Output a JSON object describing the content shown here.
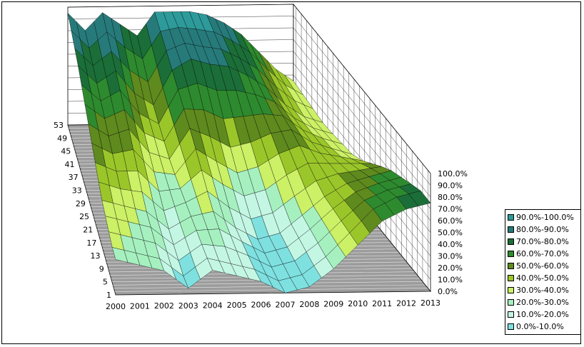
{
  "chart_data": {
    "type": "surface-3d",
    "title": "",
    "categories": [
      "2000",
      "2001",
      "2002",
      "2003",
      "2004",
      "2005",
      "2006",
      "2007",
      "2008",
      "2009",
      "2010",
      "2011",
      "2012",
      "2013"
    ],
    "depth_labels": [
      "1",
      "5",
      "9",
      "13",
      "17",
      "21",
      "25",
      "29",
      "33",
      "37",
      "41",
      "45",
      "49",
      "53"
    ],
    "z_axis": {
      "ticks": [
        "0.0%",
        "10.0%",
        "20.0%",
        "30.0%",
        "40.0%",
        "50.0%",
        "60.0%",
        "70.0%",
        "80.0%",
        "90.0%",
        "100.0%"
      ],
      "range": [
        0,
        1
      ]
    },
    "legend_position": "right",
    "legend": [
      {
        "label": "90.0%-100.0%",
        "color": "#2e9a9a"
      },
      {
        "label": "80.0%-90.0%",
        "color": "#277a7a"
      },
      {
        "label": "70.0%-80.0%",
        "color": "#1b6e38"
      },
      {
        "label": "60.0%-70.0%",
        "color": "#2e8a2e"
      },
      {
        "label": "50.0%-60.0%",
        "color": "#5f8a1e"
      },
      {
        "label": "40.0%-50.0%",
        "color": "#9bc62a"
      },
      {
        "label": "30.0%-40.0%",
        "color": "#ccf066"
      },
      {
        "label": "20.0%-30.0%",
        "color": "#a6f0c0"
      },
      {
        "label": "10.0%-20.0%",
        "color": "#c4f6e4"
      },
      {
        "label": "0.0%-10.0%",
        "color": "#7fe0e0"
      }
    ],
    "surface_rows_estimated": [
      {
        "depth": "53",
        "values": [
          0.95,
          0.8,
          0.95,
          0.85,
          0.75,
          0.95,
          0.95,
          0.95,
          0.92,
          0.85,
          0.75,
          0.6,
          0.45,
          0.35
        ]
      },
      {
        "depth": "41",
        "values": [
          0.8,
          0.65,
          0.75,
          0.55,
          0.45,
          0.75,
          0.85,
          0.8,
          0.78,
          0.7,
          0.6,
          0.45,
          0.35,
          0.3
        ]
      },
      {
        "depth": "29",
        "values": [
          0.6,
          0.5,
          0.55,
          0.35,
          0.3,
          0.55,
          0.45,
          0.35,
          0.4,
          0.5,
          0.55,
          0.45,
          0.4,
          0.35
        ]
      },
      {
        "depth": "17",
        "values": [
          0.4,
          0.35,
          0.3,
          0.15,
          0.25,
          0.3,
          0.15,
          0.05,
          0.1,
          0.25,
          0.4,
          0.5,
          0.55,
          0.6
        ]
      },
      {
        "depth": "5",
        "values": [
          0.3,
          0.25,
          0.2,
          0.05,
          0.2,
          0.15,
          0.1,
          0.0,
          0.05,
          0.2,
          0.4,
          0.6,
          0.7,
          0.75
        ]
      }
    ]
  }
}
